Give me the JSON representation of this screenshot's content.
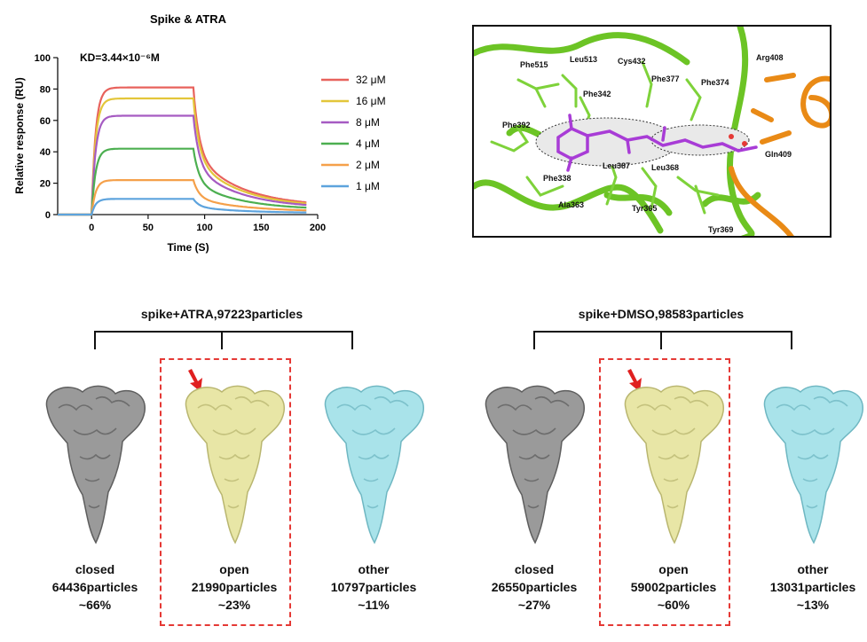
{
  "chart_data": {
    "type": "line",
    "title": "Spike & ATRA",
    "annotation": "KD=3.44×10⁻⁶M",
    "xlabel": "Time (S)",
    "ylabel": "Relative response (RU)",
    "xlim": [
      -30,
      200
    ],
    "ylim": [
      0,
      100
    ],
    "xticks": [
      0,
      50,
      100,
      150,
      200
    ],
    "yticks": [
      0,
      20,
      40,
      60,
      80,
      100
    ],
    "grid": false,
    "legend_position": "right",
    "association_end_s": 90,
    "series": [
      {
        "name": "32 μM",
        "color": "#e8625c",
        "plateau": 81,
        "end": 5
      },
      {
        "name": "16 μM",
        "color": "#e3c63a",
        "plateau": 74,
        "end": 4.5
      },
      {
        "name": "8 μM",
        "color": "#a65bc2",
        "plateau": 63,
        "end": 4
      },
      {
        "name": "4 μM",
        "color": "#4caf50",
        "plateau": 42,
        "end": 3
      },
      {
        "name": "2 μM",
        "color": "#f5a04a",
        "plateau": 22,
        "end": 2
      },
      {
        "name": "1 μM",
        "color": "#5da3dd",
        "plateau": 10,
        "end": 1
      }
    ]
  },
  "structure": {
    "residues": [
      "Phe515",
      "Leu513",
      "Cys432",
      "Phe377",
      "Phe374",
      "Arg408",
      "Phe342",
      "Phe392",
      "Gln409",
      "Leu387",
      "Leu368",
      "Phe338",
      "Ala363",
      "Tyr365",
      "Tyr369"
    ]
  },
  "groups": [
    {
      "title": "spike+ATRA,97223particles",
      "classes": [
        {
          "state": "closed",
          "particles": "64436particles",
          "percent": "~66%",
          "color": "#9a9a9a",
          "highlight": false
        },
        {
          "state": "open",
          "particles": "21990particles",
          "percent": "~23%",
          "color": "#e8e6a6",
          "highlight": true
        },
        {
          "state": "other",
          "particles": "10797particles",
          "percent": "~11%",
          "color": "#a9e3ea",
          "highlight": false
        }
      ]
    },
    {
      "title": "spike+DMSO,98583particles",
      "classes": [
        {
          "state": "closed",
          "particles": "26550particles",
          "percent": "~27%",
          "color": "#9a9a9a",
          "highlight": false
        },
        {
          "state": "open",
          "particles": "59002particles",
          "percent": "~60%",
          "color": "#e8e6a6",
          "highlight": true
        },
        {
          "state": "other",
          "particles": "13031particles",
          "percent": "~13%",
          "color": "#a9e3ea",
          "highlight": false
        }
      ]
    }
  ]
}
